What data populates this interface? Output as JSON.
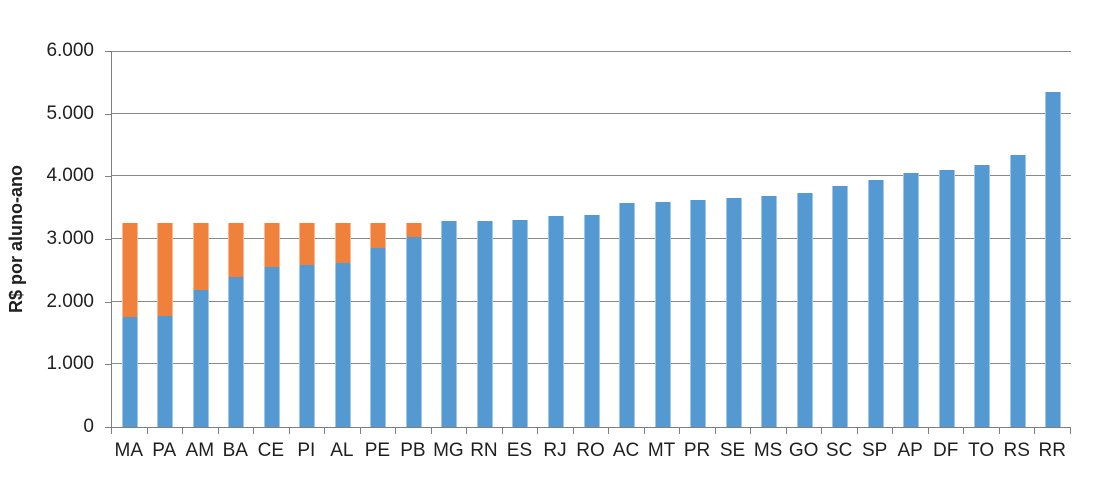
{
  "chart_data": {
    "type": "bar",
    "stacked": true,
    "title": "",
    "xlabel": "",
    "ylabel": "R$ por aluno-ano",
    "ylim": [
      0,
      6000
    ],
    "ytick_interval": 1000,
    "ytick_labels": [
      "0",
      "1.000",
      "2.000",
      "3.000",
      "4.000",
      "5.000",
      "6.000"
    ],
    "grid": "horizontal",
    "legend_position": "none",
    "categories": [
      "MA",
      "PA",
      "AM",
      "BA",
      "CE",
      "PI",
      "AL",
      "PE",
      "PB",
      "MG",
      "RN",
      "ES",
      "RJ",
      "RO",
      "AC",
      "MT",
      "PR",
      "SE",
      "MS",
      "GO",
      "SC",
      "SP",
      "AP",
      "DF",
      "TO",
      "RS",
      "RR"
    ],
    "series": [
      {
        "name": "blue",
        "color": "#5499D1",
        "values": [
          1750,
          1780,
          2180,
          2400,
          2560,
          2580,
          2620,
          2850,
          3030,
          3290,
          3290,
          3310,
          3370,
          3390,
          3570,
          3590,
          3630,
          3660,
          3680,
          3740,
          3850,
          3950,
          4050,
          4100,
          4180,
          4340,
          5340
        ]
      },
      {
        "name": "orange",
        "color": "#F0813C",
        "values": [
          1500,
          1470,
          1070,
          850,
          690,
          670,
          630,
          400,
          220,
          0,
          0,
          0,
          0,
          0,
          0,
          0,
          0,
          0,
          0,
          0,
          0,
          0,
          0,
          0,
          0,
          0,
          0
        ]
      }
    ],
    "orange_segments_top_value": 3250
  },
  "colors": {
    "gridline": "#898989",
    "axis_line": "#7f7f7f",
    "tick_label_text": "#1f1f1f"
  }
}
